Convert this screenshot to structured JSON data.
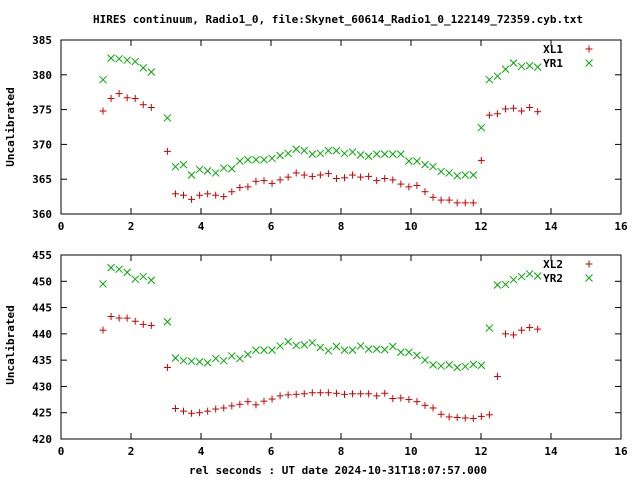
{
  "chart_data": {
    "type": "scatter",
    "title": "HIRES continuum, Radio1_0, file:Skynet_60614_Radio1_0_122149_72359.cyb.txt",
    "xlabel": "rel seconds : UT date 2024-10-31T18:07:57.000",
    "panels": [
      {
        "ylabel": "Uncalibrated",
        "xlim": [
          0,
          16
        ],
        "ylim": [
          360,
          385
        ],
        "xticks": [
          "0",
          "2",
          "4",
          "6",
          "8",
          "10",
          "12",
          "14",
          "16"
        ],
        "yticks": [
          "360",
          "365",
          "370",
          "375",
          "380",
          "385"
        ],
        "legend_position": "top-right",
        "x": [
          1.2,
          1.43,
          1.66,
          1.89,
          2.12,
          2.35,
          2.58,
          2.81,
          3.04,
          3.27,
          3.5,
          3.73,
          3.96,
          4.19,
          4.42,
          4.65,
          4.88,
          5.11,
          5.34,
          5.57,
          5.8,
          6.03,
          6.26,
          6.49,
          6.72,
          6.95,
          7.18,
          7.41,
          7.64,
          7.87,
          8.1,
          8.33,
          8.56,
          8.79,
          9.02,
          9.25,
          9.48,
          9.71,
          9.94,
          10.17,
          10.4,
          10.63,
          10.86,
          11.09,
          11.32,
          11.55,
          11.78,
          12.01,
          12.24,
          12.47,
          12.7,
          12.93,
          13.16,
          13.39,
          13.62,
          13.85,
          14.08,
          14.31,
          14.54,
          14.77,
          15.0,
          15.23,
          15.46,
          15.69,
          15.92
        ],
        "series": [
          {
            "name": "XL1",
            "marker": "plus",
            "color": "#cc0000",
            "values": [
              374.8,
              376.6,
              377.3,
              376.7,
              376.6,
              375.7,
              375.3,
              null,
              369.0,
              362.9,
              362.7,
              362.1,
              362.7,
              362.9,
              362.7,
              362.5,
              363.2,
              363.8,
              363.9,
              364.7,
              364.8,
              364.4,
              364.9,
              365.3,
              365.9,
              365.6,
              365.4,
              365.6,
              365.8,
              365.1,
              365.2,
              365.6,
              365.3,
              365.4,
              364.8,
              365.1,
              364.9,
              364.3,
              363.9,
              364.1,
              363.2,
              362.4,
              362.0,
              362.0,
              361.6,
              361.6,
              361.6,
              367.7,
              374.2,
              374.4,
              375.1,
              375.2,
              374.8,
              375.3,
              374.7,
              null,
              null,
              null,
              null,
              null,
              null,
              null,
              null,
              null,
              null
            ]
          },
          {
            "name": "YR1",
            "marker": "cross",
            "color": "#00aa00",
            "values": [
              379.3,
              382.4,
              382.3,
              382.1,
              381.9,
              381.0,
              380.4,
              null,
              373.8,
              366.8,
              367.1,
              365.6,
              366.4,
              366.2,
              365.9,
              366.6,
              366.5,
              367.6,
              367.8,
              367.8,
              367.8,
              368.0,
              368.4,
              368.7,
              369.3,
              369.1,
              368.6,
              368.7,
              369.1,
              369.1,
              368.7,
              368.9,
              368.5,
              368.3,
              368.6,
              368.6,
              368.6,
              368.6,
              367.6,
              367.6,
              367.1,
              366.8,
              366.1,
              365.9,
              365.5,
              365.6,
              365.6,
              372.4,
              379.3,
              379.8,
              380.8,
              381.7,
              381.2,
              381.3,
              381.1,
              null,
              null,
              null,
              null,
              null,
              null,
              null,
              null,
              null,
              null
            ]
          }
        ]
      },
      {
        "ylabel": "Uncalibrated",
        "xlim": [
          0,
          16
        ],
        "ylim": [
          420,
          455
        ],
        "xticks": [
          "0",
          "2",
          "4",
          "6",
          "8",
          "10",
          "12",
          "14",
          "16"
        ],
        "yticks": [
          "420",
          "425",
          "430",
          "435",
          "440",
          "445",
          "450",
          "455"
        ],
        "legend_position": "top-right",
        "x": [
          1.2,
          1.43,
          1.66,
          1.89,
          2.12,
          2.35,
          2.58,
          2.81,
          3.04,
          3.27,
          3.5,
          3.73,
          3.96,
          4.19,
          4.42,
          4.65,
          4.88,
          5.11,
          5.34,
          5.57,
          5.8,
          6.03,
          6.26,
          6.49,
          6.72,
          6.95,
          7.18,
          7.41,
          7.64,
          7.87,
          8.1,
          8.33,
          8.56,
          8.79,
          9.02,
          9.25,
          9.48,
          9.71,
          9.94,
          10.17,
          10.4,
          10.63,
          10.86,
          11.09,
          11.32,
          11.55,
          11.78,
          12.01,
          12.24,
          12.47,
          12.7,
          12.93,
          13.16,
          13.39,
          13.62,
          13.85,
          14.08,
          14.31,
          14.54,
          14.77,
          15.0,
          15.23,
          15.46,
          15.69,
          15.92
        ],
        "series": [
          {
            "name": "XL2",
            "marker": "plus",
            "color": "#cc0000",
            "values": [
              440.7,
              443.3,
              443.0,
              443.0,
              442.4,
              441.8,
              441.6,
              null,
              433.6,
              425.8,
              425.3,
              424.9,
              425.0,
              425.3,
              425.7,
              425.9,
              426.3,
              426.6,
              427.1,
              426.5,
              427.2,
              427.6,
              428.2,
              428.4,
              428.5,
              428.6,
              428.8,
              428.8,
              428.8,
              428.7,
              428.5,
              428.6,
              428.6,
              428.6,
              428.2,
              428.7,
              427.7,
              427.8,
              427.5,
              427.1,
              426.4,
              425.9,
              424.7,
              424.2,
              424.1,
              424.0,
              423.9,
              424.3,
              424.6,
              431.9,
              440.0,
              439.8,
              440.7,
              441.2,
              440.9,
              null,
              null,
              null,
              null,
              null,
              null,
              null,
              null,
              null,
              null
            ]
          },
          {
            "name": "YR2",
            "marker": "cross",
            "color": "#00aa00",
            "values": [
              449.5,
              452.6,
              452.3,
              451.7,
              450.4,
              450.9,
              450.2,
              null,
              442.3,
              435.4,
              434.9,
              434.8,
              434.7,
              434.5,
              435.3,
              434.9,
              435.8,
              435.3,
              436.1,
              436.9,
              436.9,
              436.9,
              437.7,
              438.5,
              437.8,
              437.9,
              438.3,
              437.4,
              436.8,
              437.6,
              436.9,
              436.9,
              437.7,
              437.1,
              437.1,
              437.0,
              437.6,
              436.5,
              436.5,
              435.9,
              435.0,
              434.1,
              433.9,
              434.1,
              433.6,
              433.8,
              434.2,
              434.0,
              441.1,
              449.3,
              449.4,
              450.3,
              450.9,
              451.4,
              451.0,
              null,
              null,
              null,
              null,
              null,
              null,
              null,
              null,
              null,
              null
            ]
          }
        ]
      }
    ]
  }
}
